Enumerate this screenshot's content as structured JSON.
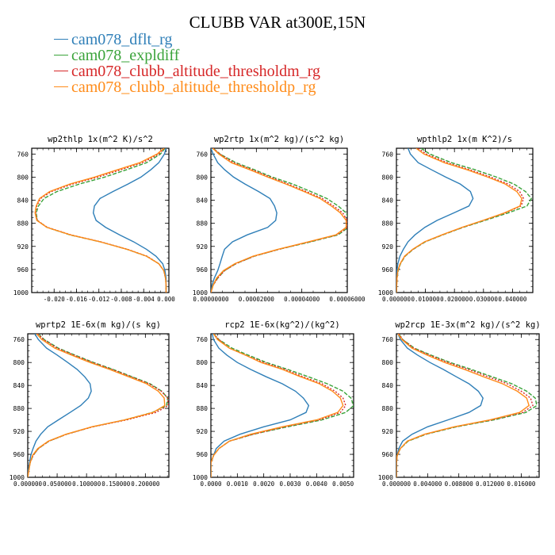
{
  "page_title": "CLUBB VAR at300E,15N",
  "series_meta": [
    {
      "name": "cam078_dflt_rg",
      "color": "#2f7fb8",
      "dash": ""
    },
    {
      "name": "cam078_expldiff",
      "color": "#3aa33a",
      "dash": "5,2"
    },
    {
      "name": "cam078_clubb_altitude_thresholdm_rg",
      "color": "#d62728",
      "dash": "2,2"
    },
    {
      "name": "cam078_clubb_altitude_thresholdp_rg",
      "color": "#ff8c1a",
      "dash": ""
    }
  ],
  "chart_data": [
    {
      "type": "line",
      "title": "wp2thlp  1x(m^2 K)/s^2",
      "xlim": [
        -0.024,
        0.0005
      ],
      "ylim": [
        1000,
        750
      ],
      "xticks": [
        -0.02,
        -0.016,
        -0.012,
        -0.008,
        -0.004,
        0.0
      ],
      "xtick_labels": [
        "-0.020",
        "-0.016",
        "-0.012",
        "-0.008",
        "-0.004",
        "0.000"
      ],
      "yticks": [
        760,
        800,
        840,
        880,
        920,
        960,
        1000
      ],
      "pressure": [
        750,
        760,
        775,
        787,
        800,
        812,
        825,
        837,
        850,
        862,
        875,
        887,
        900,
        912,
        925,
        937,
        950,
        962,
        975,
        987,
        1000
      ],
      "series": [
        {
          "name": "cam078_dflt_rg",
          "values": [
            0.0,
            -0.0003,
            -0.0013,
            -0.0027,
            -0.0045,
            -0.0068,
            -0.0095,
            -0.0118,
            -0.0128,
            -0.013,
            -0.0125,
            -0.0108,
            -0.0083,
            -0.0058,
            -0.0035,
            -0.0018,
            -0.0006,
            -0.0002,
            0.0,
            0.0,
            0.0
          ]
        },
        {
          "name": "cam078_expldiff",
          "values": [
            -0.0002,
            -0.001,
            -0.0035,
            -0.007,
            -0.011,
            -0.0155,
            -0.0195,
            -0.0218,
            -0.0228,
            -0.0232,
            -0.023,
            -0.0213,
            -0.0172,
            -0.0118,
            -0.007,
            -0.0035,
            -0.0013,
            -0.0004,
            -0.0001,
            0.0,
            0.0
          ]
        },
        {
          "name": "cam078_clubb_altitude_thresholdm_rg",
          "values": [
            -0.0003,
            -0.0013,
            -0.0042,
            -0.008,
            -0.0122,
            -0.0167,
            -0.0205,
            -0.0224,
            -0.0231,
            -0.0233,
            -0.023,
            -0.0212,
            -0.017,
            -0.0117,
            -0.0069,
            -0.0034,
            -0.0013,
            -0.0004,
            -0.0001,
            0.0,
            0.0
          ]
        },
        {
          "name": "cam078_clubb_altitude_thresholdp_rg",
          "values": [
            -0.0004,
            -0.0016,
            -0.0047,
            -0.0086,
            -0.0128,
            -0.0172,
            -0.0208,
            -0.0226,
            -0.0232,
            -0.0234,
            -0.0231,
            -0.0213,
            -0.0171,
            -0.0118,
            -0.007,
            -0.0035,
            -0.0013,
            -0.0004,
            -0.0001,
            0.0,
            0.0
          ]
        }
      ]
    },
    {
      "type": "line",
      "title": "wp2rtp  1x(m^2 kg)/(s^2 kg)",
      "xlim": [
        0,
        6e-05
      ],
      "ylim": [
        1000,
        750
      ],
      "xticks": [
        0,
        2e-05,
        4e-05,
        6e-05
      ],
      "xtick_labels": [
        "0.00000000",
        "0.00002000",
        "0.00004000",
        "0.00006000"
      ],
      "yticks": [
        760,
        800,
        840,
        880,
        920,
        960,
        1000
      ],
      "pressure": [
        750,
        760,
        775,
        787,
        800,
        812,
        825,
        837,
        850,
        862,
        875,
        887,
        900,
        912,
        925,
        937,
        950,
        962,
        975,
        987,
        1000
      ],
      "series": [
        {
          "name": "cam078_dflt_rg",
          "values": [
            0.0,
            1e-06,
            3e-06,
            6e-06,
            1e-05,
            1.5e-05,
            2.1e-05,
            2.6e-05,
            2.8e-05,
            2.9e-05,
            2.85e-05,
            2.5e-05,
            1.6e-05,
            9.5e-06,
            6e-06,
            5e-06,
            4e-06,
            3e-06,
            1.5e-06,
            5e-07,
            0.0
          ]
        },
        {
          "name": "cam078_expldiff",
          "values": [
            1e-06,
            4e-06,
            1.1e-05,
            1.9e-05,
            2.7e-05,
            3.6e-05,
            4.4e-05,
            5.1e-05,
            5.6e-05,
            5.95e-05,
            6.1e-05,
            6.05e-05,
            5.6e-05,
            4.4e-05,
            3e-05,
            1.9e-05,
            1.1e-05,
            6e-06,
            3e-06,
            1e-06,
            0.0
          ]
        },
        {
          "name": "cam078_clubb_altitude_thresholdm_rg",
          "values": [
            1e-06,
            4e-06,
            1e-05,
            1.8e-05,
            2.6e-05,
            3.4e-05,
            4.2e-05,
            4.9e-05,
            5.4e-05,
            5.8e-05,
            6e-05,
            6e-05,
            5.55e-05,
            4.35e-05,
            3e-05,
            1.9e-05,
            1.1e-05,
            6e-06,
            3e-06,
            1e-06,
            0.0
          ]
        },
        {
          "name": "cam078_clubb_altitude_thresholdp_rg",
          "values": [
            8e-07,
            3.5e-06,
            9e-06,
            1.7e-05,
            2.5e-05,
            3.3e-05,
            4.1e-05,
            4.8e-05,
            5.3e-05,
            5.7e-05,
            5.95e-05,
            5.95e-05,
            5.5e-05,
            4.3e-05,
            2.95e-05,
            1.85e-05,
            1.05e-05,
            5.5e-06,
            2.5e-06,
            1e-06,
            0.0
          ]
        }
      ]
    },
    {
      "type": "line",
      "title": "wpthlp2  1x(m K^2)/s",
      "xlim": [
        0,
        0.047
      ],
      "ylim": [
        1000,
        750
      ],
      "xticks": [
        0,
        0.01,
        0.02,
        0.03,
        0.04
      ],
      "xtick_labels": [
        "0.000000",
        "0.010000",
        "0.020000",
        "0.030000",
        "0.040000"
      ],
      "yticks": [
        760,
        800,
        840,
        880,
        920,
        960,
        1000
      ],
      "pressure": [
        750,
        760,
        775,
        787,
        800,
        812,
        825,
        837,
        850,
        862,
        875,
        887,
        900,
        912,
        925,
        937,
        950,
        962,
        975,
        987,
        1000
      ],
      "series": [
        {
          "name": "cam078_dflt_rg",
          "values": [
            0.004,
            0.0048,
            0.0075,
            0.012,
            0.017,
            0.022,
            0.0255,
            0.0264,
            0.025,
            0.0198,
            0.014,
            0.0098,
            0.0064,
            0.004,
            0.0024,
            0.0012,
            0.0005,
            0.0002,
            0.0001,
            0.0,
            0.0
          ]
        },
        {
          "name": "cam078_expldiff",
          "values": [
            0.0085,
            0.0115,
            0.019,
            0.027,
            0.0345,
            0.0405,
            0.0445,
            0.0465,
            0.045,
            0.0385,
            0.0305,
            0.023,
            0.016,
            0.01,
            0.0058,
            0.003,
            0.0014,
            0.0006,
            0.0002,
            0.0001,
            0.0
          ]
        },
        {
          "name": "cam078_clubb_altitude_thresholdm_rg",
          "values": [
            0.0075,
            0.0103,
            0.0175,
            0.0252,
            0.0325,
            0.0385,
            0.0425,
            0.0438,
            0.043,
            0.0375,
            0.03,
            0.0228,
            0.0158,
            0.0098,
            0.0057,
            0.0029,
            0.0013,
            0.0005,
            0.0002,
            0.0001,
            0.0
          ]
        },
        {
          "name": "cam078_clubb_altitude_thresholdp_rg",
          "values": [
            0.0068,
            0.0095,
            0.0165,
            0.0242,
            0.0315,
            0.0375,
            0.0415,
            0.0432,
            0.0426,
            0.0372,
            0.0298,
            0.0226,
            0.0157,
            0.0097,
            0.0056,
            0.0028,
            0.0013,
            0.0005,
            0.0002,
            0.0001,
            0.0
          ]
        }
      ]
    },
    {
      "type": "line",
      "title": "wprtp2  1E-6x(m kg)/(s kg)",
      "xlim": [
        0,
        0.24
      ],
      "ylim": [
        1000,
        750
      ],
      "xticks": [
        0,
        0.05,
        0.1,
        0.15,
        0.2
      ],
      "xtick_labels": [
        "0.000000",
        "0.050000",
        "0.100000",
        "0.150000",
        "0.200000"
      ],
      "yticks": [
        760,
        800,
        840,
        880,
        920,
        960,
        1000
      ],
      "pressure": [
        750,
        760,
        775,
        787,
        800,
        812,
        825,
        837,
        850,
        862,
        875,
        887,
        900,
        912,
        925,
        937,
        950,
        962,
        975,
        987,
        1000
      ],
      "series": [
        {
          "name": "cam078_dflt_rg",
          "values": [
            0.012,
            0.018,
            0.032,
            0.05,
            0.068,
            0.084,
            0.097,
            0.106,
            0.108,
            0.103,
            0.09,
            0.072,
            0.052,
            0.034,
            0.022,
            0.014,
            0.009,
            0.005,
            0.003,
            0.001,
            0.0
          ]
        },
        {
          "name": "cam078_expldiff",
          "values": [
            0.018,
            0.028,
            0.052,
            0.08,
            0.112,
            0.145,
            0.178,
            0.208,
            0.228,
            0.238,
            0.236,
            0.212,
            0.165,
            0.11,
            0.066,
            0.036,
            0.018,
            0.009,
            0.004,
            0.002,
            0.0
          ]
        },
        {
          "name": "cam078_clubb_altitude_thresholdm_rg",
          "values": [
            0.017,
            0.027,
            0.05,
            0.078,
            0.11,
            0.143,
            0.176,
            0.206,
            0.227,
            0.238,
            0.239,
            0.218,
            0.168,
            0.111,
            0.066,
            0.036,
            0.018,
            0.009,
            0.004,
            0.002,
            0.0
          ]
        },
        {
          "name": "cam078_clubb_altitude_thresholdp_rg",
          "values": [
            0.015,
            0.024,
            0.046,
            0.074,
            0.106,
            0.139,
            0.172,
            0.202,
            0.222,
            0.232,
            0.233,
            0.213,
            0.165,
            0.109,
            0.065,
            0.035,
            0.017,
            0.008,
            0.004,
            0.002,
            0.0
          ]
        }
      ]
    },
    {
      "type": "line",
      "title": "rcp2  1E-6x(kg^2)/(kg^2)",
      "xlim": [
        0,
        0.0054
      ],
      "ylim": [
        1000,
        750
      ],
      "xticks": [
        0,
        0.001,
        0.002,
        0.003,
        0.004,
        0.005
      ],
      "xtick_labels": [
        "0.0000",
        "0.0010",
        "0.0020",
        "0.0030",
        "0.0040",
        "0.0050"
      ],
      "yticks": [
        760,
        800,
        840,
        880,
        920,
        960,
        1000
      ],
      "pressure": [
        750,
        760,
        775,
        787,
        800,
        812,
        825,
        837,
        850,
        862,
        875,
        887,
        900,
        912,
        925,
        937,
        950,
        962,
        975,
        987,
        1000
      ],
      "series": [
        {
          "name": "cam078_dflt_rg",
          "values": [
            5e-05,
            0.0001,
            0.0003,
            0.0006,
            0.001,
            0.0015,
            0.0021,
            0.0027,
            0.0032,
            0.0035,
            0.0037,
            0.0036,
            0.003,
            0.002,
            0.0011,
            0.0005,
            0.0002,
            0.0001,
            0.0,
            0.0,
            0.0
          ]
        },
        {
          "name": "cam078_expldiff",
          "values": [
            0.0001,
            0.0003,
            0.0008,
            0.0014,
            0.0021,
            0.0029,
            0.0037,
            0.0044,
            0.005,
            0.0053,
            0.0054,
            0.0051,
            0.0042,
            0.0029,
            0.0016,
            0.0007,
            0.0003,
            0.0001,
            0.0,
            0.0,
            0.0
          ]
        },
        {
          "name": "cam078_clubb_altitude_thresholdm_rg",
          "values": [
            0.0001,
            0.0003,
            0.0007,
            0.0013,
            0.002,
            0.0028,
            0.0035,
            0.0042,
            0.0047,
            0.005,
            0.0051,
            0.0049,
            0.0041,
            0.0028,
            0.0016,
            0.0007,
            0.0003,
            0.0001,
            0.0,
            0.0,
            0.0
          ]
        },
        {
          "name": "cam078_clubb_altitude_thresholdp_rg",
          "values": [
            0.0001,
            0.00025,
            0.0007,
            0.0013,
            0.0019,
            0.0027,
            0.0034,
            0.0041,
            0.0046,
            0.0049,
            0.005,
            0.0048,
            0.004,
            0.0027,
            0.0015,
            0.0007,
            0.0003,
            0.0001,
            0.0,
            0.0,
            0.0
          ]
        }
      ]
    },
    {
      "type": "line",
      "title": "wp2rcp  1E-3x(m^2 kg)/(s^2 kg)",
      "xlim": [
        0,
        0.0183
      ],
      "ylim": [
        1000,
        750
      ],
      "xticks": [
        0,
        0.004,
        0.008,
        0.012,
        0.016
      ],
      "xtick_labels": [
        "0.000000",
        "0.004000",
        "0.008000",
        "0.012000",
        "0.016000"
      ],
      "yticks": [
        760,
        800,
        840,
        880,
        920,
        960,
        1000
      ],
      "pressure": [
        750,
        760,
        775,
        787,
        800,
        812,
        825,
        837,
        850,
        862,
        875,
        887,
        900,
        912,
        925,
        937,
        950,
        962,
        975,
        987,
        1000
      ],
      "series": [
        {
          "name": "cam078_dflt_rg",
          "values": [
            0.0002,
            0.0005,
            0.0014,
            0.0027,
            0.0043,
            0.006,
            0.0077,
            0.0093,
            0.0105,
            0.0111,
            0.0108,
            0.0093,
            0.0066,
            0.004,
            0.002,
            0.0008,
            0.0003,
            0.0001,
            0.0,
            0.0,
            0.0
          ]
        },
        {
          "name": "cam078_expldiff",
          "values": [
            0.0003,
            0.0008,
            0.0023,
            0.0044,
            0.0069,
            0.0096,
            0.0123,
            0.0148,
            0.0167,
            0.0178,
            0.018,
            0.0166,
            0.0125,
            0.0077,
            0.0038,
            0.0015,
            0.0005,
            0.0001,
            0.0,
            0.0,
            0.0
          ]
        },
        {
          "name": "cam078_clubb_altitude_thresholdm_rg",
          "values": [
            0.0003,
            0.0008,
            0.0022,
            0.0042,
            0.0066,
            0.0092,
            0.0118,
            0.0142,
            0.016,
            0.0172,
            0.0175,
            0.0162,
            0.0122,
            0.0075,
            0.0037,
            0.0014,
            0.0005,
            0.0001,
            0.0,
            0.0,
            0.0
          ]
        },
        {
          "name": "cam078_clubb_altitude_thresholdp_rg",
          "values": [
            0.0002,
            0.0007,
            0.002,
            0.0039,
            0.0062,
            0.0087,
            0.0112,
            0.0136,
            0.0155,
            0.0167,
            0.017,
            0.0158,
            0.012,
            0.0074,
            0.0036,
            0.0014,
            0.0005,
            0.0001,
            0.0,
            0.0,
            0.0
          ]
        }
      ]
    }
  ]
}
